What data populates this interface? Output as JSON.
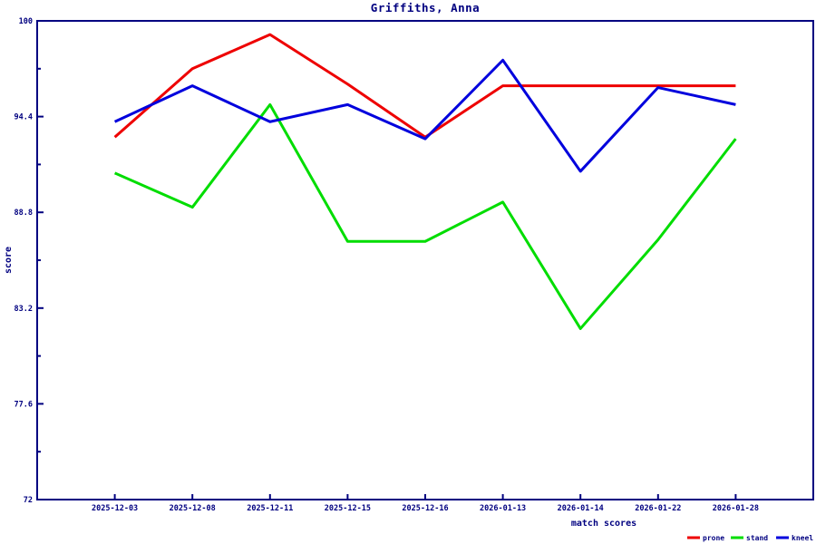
{
  "title": "Griffiths, Anna",
  "axes": {
    "y_label": "score",
    "x_label": "match scores",
    "y_tick_labels": [
      "100",
      "94.4",
      "88.8",
      "83.2",
      "77.6",
      "72"
    ],
    "y_tick_values": [
      100,
      94.4,
      88.8,
      83.2,
      77.6,
      72
    ]
  },
  "colors": {
    "frame": "#000080",
    "text": "#000080",
    "prone": "#ee0000",
    "stand": "#00dd00",
    "kneel": "#0000dd"
  },
  "chart_data": {
    "type": "line",
    "title": "Griffiths, Anna",
    "xlabel": "match scores",
    "ylabel": "score",
    "ylim": [
      72,
      100
    ],
    "grid": false,
    "legend_position": "bottom-right",
    "categories": [
      "2025-12-03",
      "2025-12-08",
      "2025-12-11",
      "2025-12-15",
      "2025-12-16",
      "2026-01-13",
      "2026-01-14",
      "2026-01-22",
      "2026-01-28"
    ],
    "series": [
      {
        "name": "prone",
        "color": "#ee0000",
        "values": [
          93.2,
          97.2,
          99.2,
          96.3,
          93.2,
          96.2,
          96.2,
          96.2,
          96.2
        ]
      },
      {
        "name": "stand",
        "color": "#00dd00",
        "values": [
          91.1,
          89.1,
          95.1,
          87.1,
          87.1,
          89.4,
          82.0,
          87.2,
          93.1
        ]
      },
      {
        "name": "kneel",
        "color": "#0000dd",
        "values": [
          94.1,
          96.2,
          94.1,
          95.1,
          93.1,
          97.7,
          91.2,
          96.1,
          95.1
        ]
      }
    ]
  }
}
